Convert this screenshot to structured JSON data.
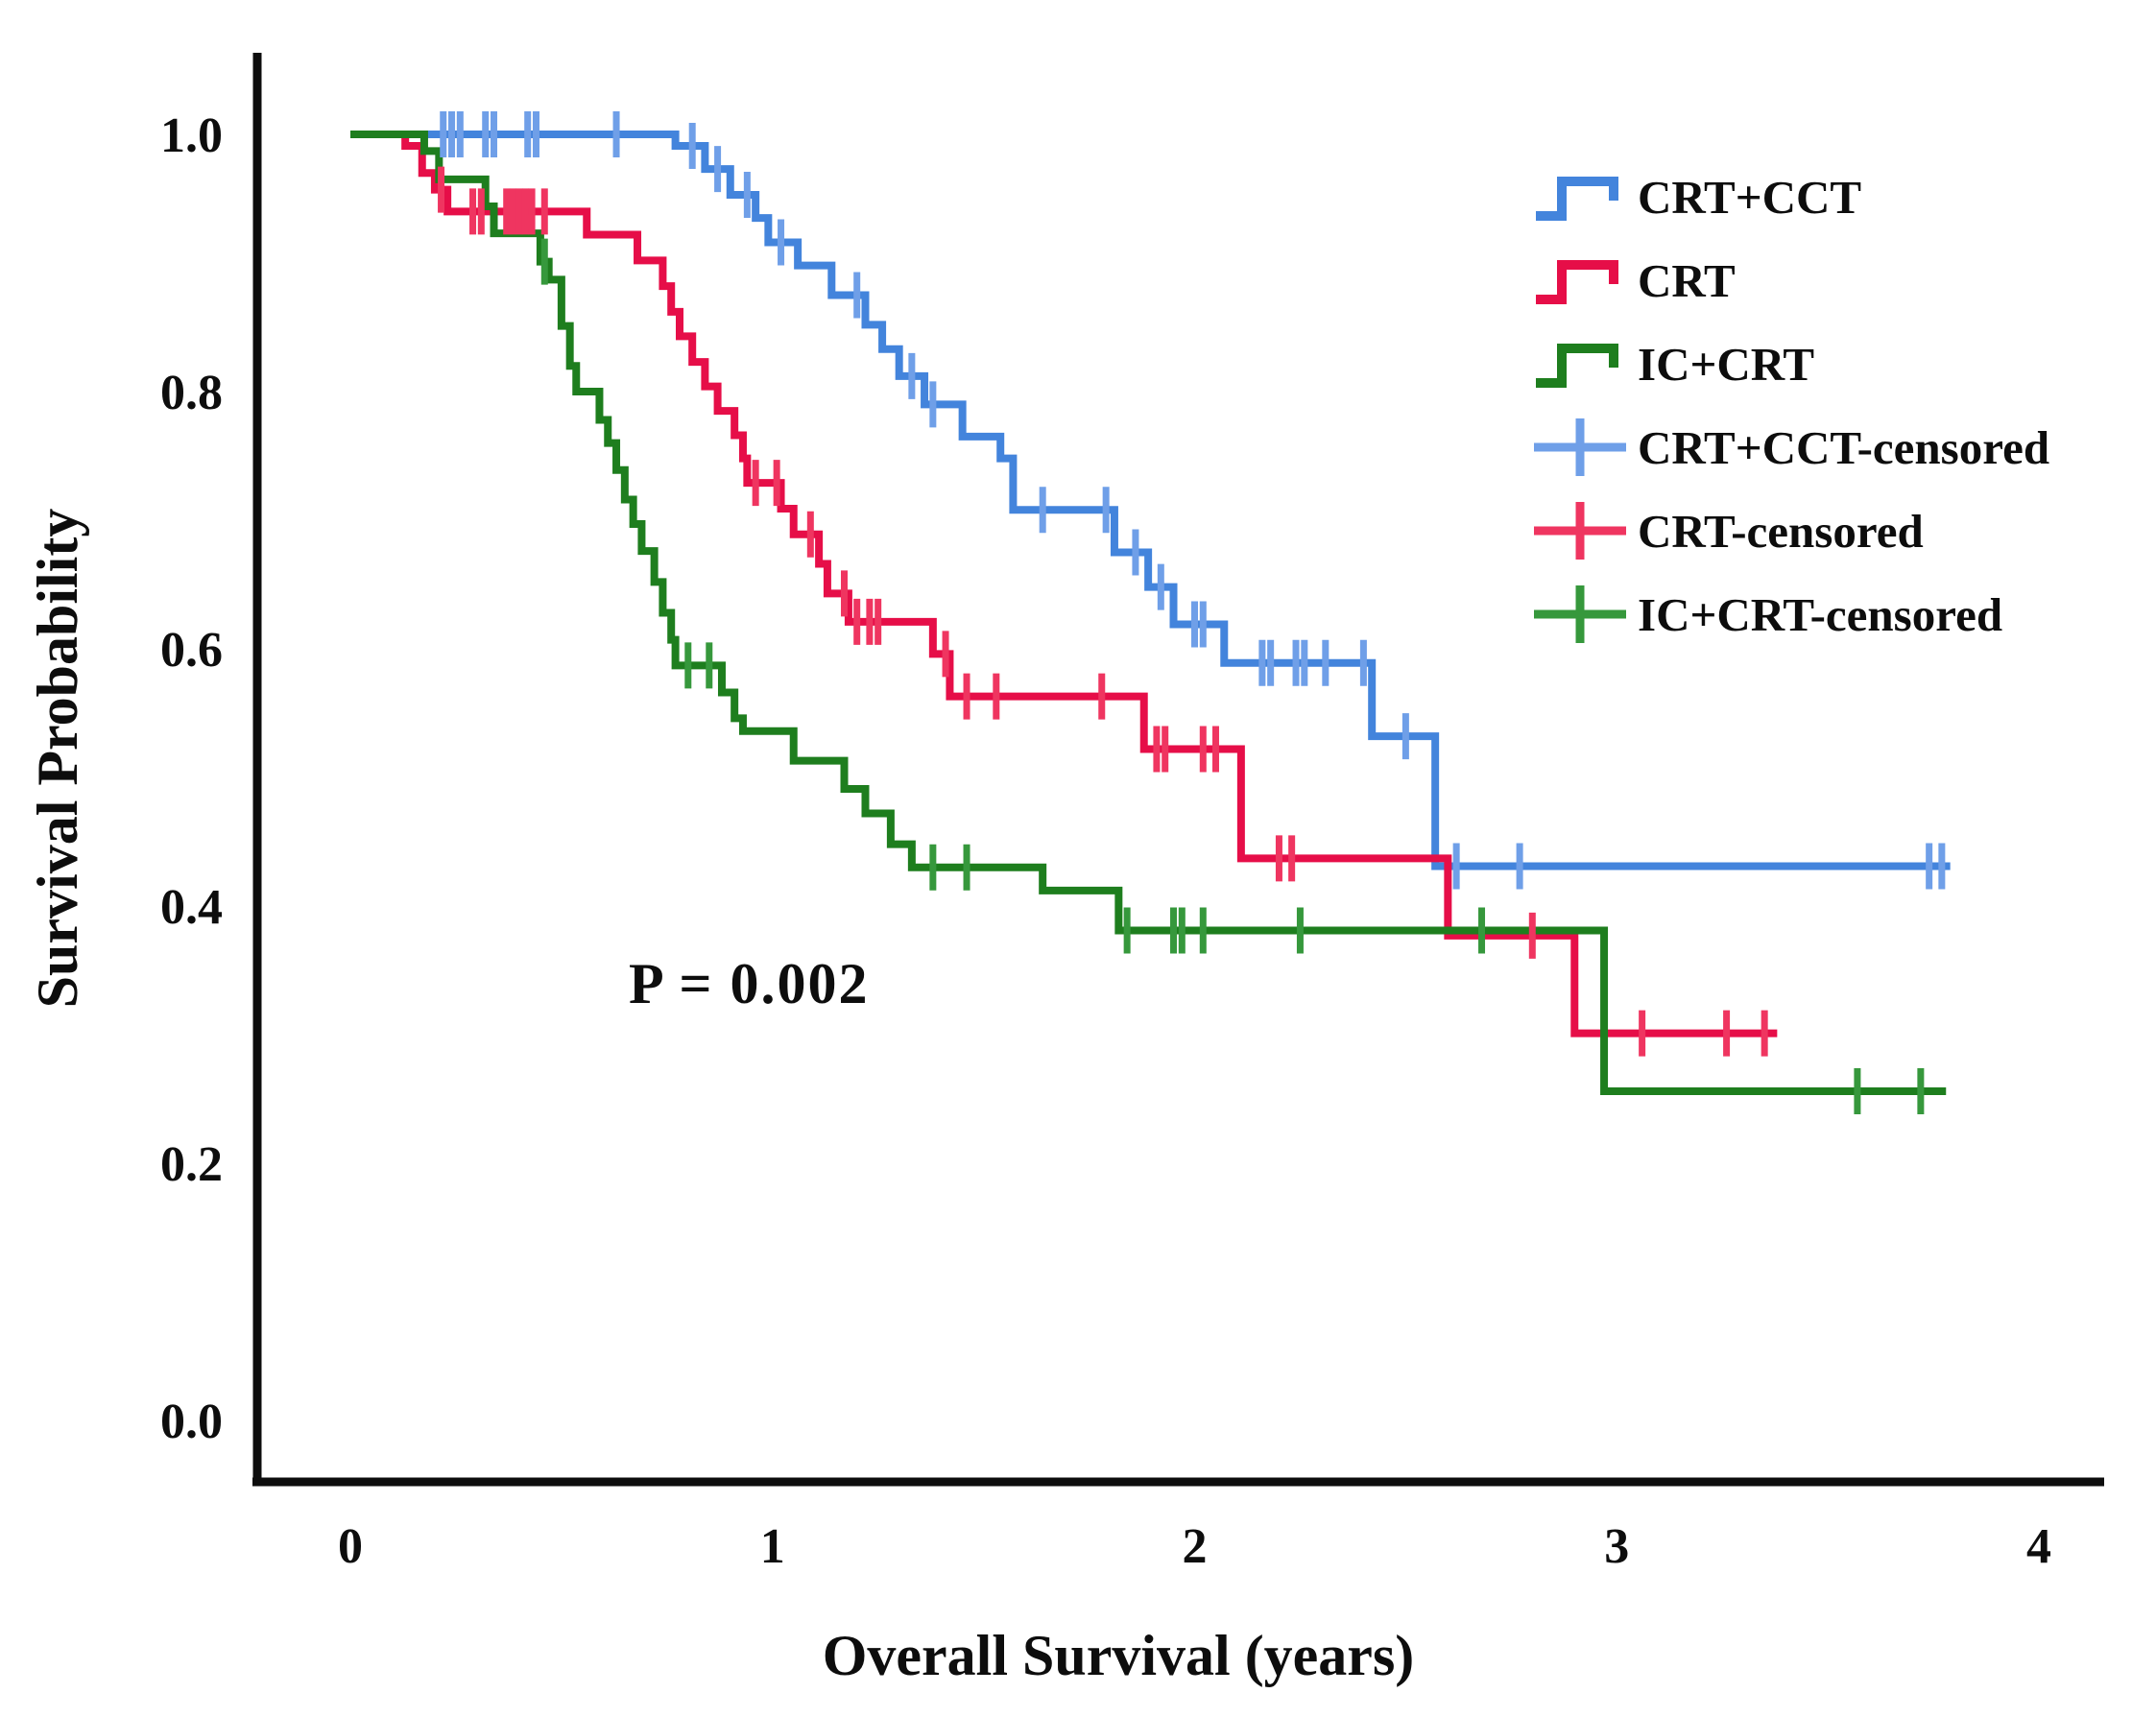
{
  "chart_data": {
    "type": "line",
    "subtype": "kaplan-meier-survival",
    "title": "",
    "xlabel": "Overall Survival (years)",
    "ylabel": "Survival Probability",
    "annotation": "P = 0.002",
    "xlim": [
      0,
      4
    ],
    "ylim": [
      0.0,
      1.0
    ],
    "grid": false,
    "legend_position": "top-right",
    "x_ticks": [
      {
        "value": 0,
        "label": "0"
      },
      {
        "value": 1,
        "label": "1"
      },
      {
        "value": 2,
        "label": "2"
      },
      {
        "value": 3,
        "label": "3"
      },
      {
        "value": 4,
        "label": "4"
      }
    ],
    "y_ticks": [
      {
        "value": 1.0,
        "label": "1.0"
      },
      {
        "value": 0.8,
        "label": "0.8"
      },
      {
        "value": 0.6,
        "label": "0.6"
      },
      {
        "value": 0.4,
        "label": "0.4"
      },
      {
        "value": 0.2,
        "label": "0.2"
      },
      {
        "value": 0.0,
        "label": "0.0"
      }
    ],
    "series": [
      {
        "name": "CRT+CCT",
        "color": "#4384dc",
        "censor_color": "#6f9fe8",
        "end_t": 3.79,
        "steps": [
          [
            0,
            1.0
          ],
          [
            0.77,
            0.991
          ],
          [
            0.84,
            0.973
          ],
          [
            0.9,
            0.953
          ],
          [
            0.96,
            0.935
          ],
          [
            0.99,
            0.916
          ],
          [
            1.06,
            0.898
          ],
          [
            1.14,
            0.875
          ],
          [
            1.22,
            0.852
          ],
          [
            1.26,
            0.833
          ],
          [
            1.3,
            0.812
          ],
          [
            1.36,
            0.79
          ],
          [
            1.45,
            0.765
          ],
          [
            1.54,
            0.748
          ],
          [
            1.57,
            0.708
          ],
          [
            1.81,
            0.675
          ],
          [
            1.89,
            0.648
          ],
          [
            1.95,
            0.619
          ],
          [
            2.07,
            0.589
          ],
          [
            2.42,
            0.532
          ],
          [
            2.57,
            0.431
          ]
        ],
        "censor_times": [
          0.22,
          0.24,
          0.26,
          0.32,
          0.34,
          0.42,
          0.44,
          0.63,
          0.81,
          0.87,
          0.94,
          1.02,
          1.2,
          1.33,
          1.38,
          1.64,
          1.79,
          1.86,
          1.92,
          2.0,
          2.02,
          2.16,
          2.18,
          2.24,
          2.26,
          2.31,
          2.4,
          2.5,
          2.62,
          2.77,
          3.74,
          3.77
        ]
      },
      {
        "name": "CRT",
        "color": "#e60e48",
        "censor_color": "#ef3560",
        "end_t": 3.38,
        "steps": [
          [
            0,
            1.0
          ],
          [
            0.13,
            0.991
          ],
          [
            0.17,
            0.97
          ],
          [
            0.2,
            0.957
          ],
          [
            0.23,
            0.94
          ],
          [
            0.56,
            0.922
          ],
          [
            0.68,
            0.902
          ],
          [
            0.74,
            0.882
          ],
          [
            0.76,
            0.862
          ],
          [
            0.78,
            0.843
          ],
          [
            0.81,
            0.823
          ],
          [
            0.84,
            0.804
          ],
          [
            0.87,
            0.785
          ],
          [
            0.91,
            0.766
          ],
          [
            0.93,
            0.748
          ],
          [
            0.94,
            0.729
          ],
          [
            1.02,
            0.709
          ],
          [
            1.05,
            0.689
          ],
          [
            1.11,
            0.666
          ],
          [
            1.13,
            0.643
          ],
          [
            1.18,
            0.621
          ],
          [
            1.38,
            0.596
          ],
          [
            1.42,
            0.563
          ],
          [
            1.88,
            0.522
          ],
          [
            2.11,
            0.437
          ],
          [
            2.6,
            0.377
          ],
          [
            2.9,
            0.301
          ]
        ],
        "censor_times": [
          0.215,
          0.29,
          0.31,
          0.37,
          0.385,
          0.4,
          0.415,
          0.43,
          0.46,
          0.96,
          1.01,
          1.09,
          1.17,
          1.2,
          1.23,
          1.25,
          1.41,
          1.46,
          1.53,
          1.78,
          1.91,
          1.93,
          2.02,
          2.05,
          2.2,
          2.23,
          2.8,
          3.06,
          3.26,
          3.35
        ]
      },
      {
        "name": "IC+CRT",
        "color": "#1e7e1e",
        "censor_color": "#36983c",
        "end_t": 3.78,
        "steps": [
          [
            0,
            1.0
          ],
          [
            0.175,
            0.987
          ],
          [
            0.21,
            0.965
          ],
          [
            0.32,
            0.944
          ],
          [
            0.34,
            0.923
          ],
          [
            0.45,
            0.901
          ],
          [
            0.47,
            0.887
          ],
          [
            0.5,
            0.851
          ],
          [
            0.52,
            0.82
          ],
          [
            0.535,
            0.8
          ],
          [
            0.59,
            0.778
          ],
          [
            0.61,
            0.76
          ],
          [
            0.63,
            0.739
          ],
          [
            0.65,
            0.716
          ],
          [
            0.67,
            0.697
          ],
          [
            0.69,
            0.676
          ],
          [
            0.72,
            0.652
          ],
          [
            0.74,
            0.628
          ],
          [
            0.76,
            0.607
          ],
          [
            0.77,
            0.587
          ],
          [
            0.88,
            0.566
          ],
          [
            0.91,
            0.546
          ],
          [
            0.93,
            0.536
          ],
          [
            1.05,
            0.513
          ],
          [
            1.17,
            0.491
          ],
          [
            1.22,
            0.472
          ],
          [
            1.28,
            0.448
          ],
          [
            1.33,
            0.43
          ],
          [
            1.64,
            0.412
          ],
          [
            1.82,
            0.381
          ],
          [
            2.97,
            0.256
          ]
        ],
        "censor_times": [
          0.46,
          0.8,
          0.85,
          1.38,
          1.46,
          1.84,
          1.95,
          1.97,
          2.02,
          2.25,
          2.68,
          3.57,
          3.72
        ]
      }
    ],
    "legend": [
      {
        "label": "CRT+CCT",
        "symbol": "step",
        "color": "#4384dc"
      },
      {
        "label": "CRT",
        "symbol": "step",
        "color": "#e60e48"
      },
      {
        "label": "IC+CRT",
        "symbol": "step",
        "color": "#1e7e1e"
      },
      {
        "label": "CRT+CCT-censored",
        "symbol": "plus",
        "color": "#6f9fe8"
      },
      {
        "label": "CRT-censored",
        "symbol": "plus",
        "color": "#ef3560"
      },
      {
        "label": "IC+CRT-censored",
        "symbol": "plus",
        "color": "#36983c"
      }
    ]
  }
}
